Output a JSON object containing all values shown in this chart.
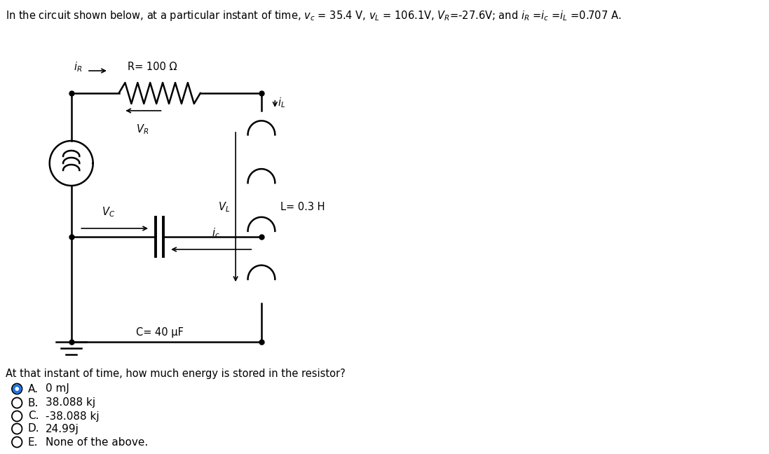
{
  "title_text": "In the circuit shown below, at a particular instant of time, vc = 35.4 V, vL = 106.1V, VR=-27.6V; and iR =ic =iL =0.707 A.",
  "question": "At that instant of time, how much energy is stored in the resistor?",
  "options": [
    {
      "label": "A.",
      "text": "0 mJ",
      "selected": true
    },
    {
      "label": "B.",
      "text": "38.088 kj",
      "selected": false
    },
    {
      "label": "C.",
      "text": "-38.088 kj",
      "selected": false
    },
    {
      "label": "D.",
      "text": "24.99j",
      "selected": false
    },
    {
      "label": "E.",
      "text": "None of the above.",
      "selected": false
    }
  ],
  "R_label": "R= 100 Ω",
  "L_label": "L= 0.3 H",
  "C_label": "C= 40 μF",
  "bg_color": "#ffffff",
  "text_color": "#000000",
  "selected_color": "#1a73e8",
  "font_size": 11,
  "circuit_lw": 1.8
}
